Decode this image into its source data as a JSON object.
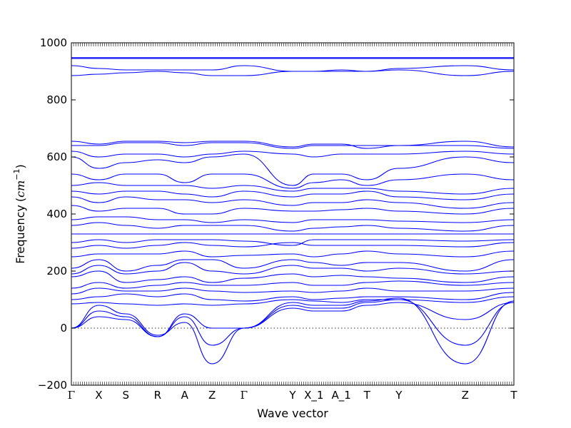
{
  "chart_data": {
    "type": "line",
    "title": "",
    "xlabel": "Wave vector",
    "ylabel": "Frequency",
    "ylabel_unit": "cm",
    "ylabel_unit_exp": "−1",
    "ylim": [
      -200,
      1000
    ],
    "yticks": [
      -200,
      0,
      200,
      400,
      600,
      800,
      1000
    ],
    "ytick_labels": [
      "−200",
      "0",
      "200",
      "400",
      "600",
      "800",
      "1000"
    ],
    "zero_line": true,
    "grid": false,
    "legend": "none",
    "line_color": "#0000ff",
    "x_range": [
      0,
      1
    ],
    "kpoints": [
      {
        "label": "Γ",
        "x": 0.0
      },
      {
        "label": "X",
        "x": 0.062
      },
      {
        "label": "S",
        "x": 0.123
      },
      {
        "label": "R",
        "x": 0.195
      },
      {
        "label": "A",
        "x": 0.256
      },
      {
        "label": "Z",
        "x": 0.318
      },
      {
        "label": "Γ",
        "x": 0.39
      },
      {
        "label": "Y",
        "x": 0.5
      },
      {
        "label": "X_1",
        "x": 0.548
      },
      {
        "label": "A_1",
        "x": 0.61
      },
      {
        "label": "T",
        "x": 0.668
      },
      {
        "label": "Y",
        "x": 0.74
      },
      {
        "label": "Z",
        "x": 0.89
      },
      {
        "label": "T",
        "x": 1.0
      }
    ],
    "bands_at_kpoints": [
      [
        0,
        40,
        30,
        -30,
        50,
        0,
        0,
        70,
        60,
        60,
        80,
        90,
        30,
        90
      ],
      [
        0,
        60,
        40,
        -30,
        40,
        -60,
        0,
        80,
        70,
        70,
        90,
        100,
        -60,
        90
      ],
      [
        0,
        80,
        50,
        -25,
        20,
        -125,
        0,
        90,
        80,
        80,
        95,
        105,
        -125,
        95
      ],
      [
        85,
        90,
        85,
        80,
        85,
        80,
        85,
        100,
        95,
        90,
        100,
        100,
        90,
        110
      ],
      [
        100,
        110,
        120,
        110,
        120,
        100,
        95,
        110,
        100,
        105,
        110,
        110,
        100,
        125
      ],
      [
        120,
        140,
        130,
        130,
        140,
        130,
        125,
        130,
        125,
        130,
        140,
        130,
        130,
        140
      ],
      [
        140,
        160,
        140,
        150,
        160,
        150,
        150,
        160,
        150,
        150,
        160,
        165,
        150,
        160
      ],
      [
        180,
        200,
        160,
        170,
        180,
        160,
        175,
        190,
        180,
        185,
        180,
        175,
        160,
        180
      ],
      [
        190,
        220,
        190,
        200,
        230,
        200,
        190,
        220,
        210,
        210,
        200,
        210,
        190,
        200
      ],
      [
        210,
        240,
        200,
        220,
        240,
        240,
        210,
        240,
        230,
        220,
        230,
        230,
        200,
        240
      ],
      [
        250,
        260,
        260,
        260,
        270,
        250,
        255,
        260,
        250,
        260,
        270,
        260,
        250,
        270
      ],
      [
        280,
        290,
        280,
        290,
        300,
        290,
        285,
        300,
        290,
        290,
        290,
        290,
        285,
        300
      ],
      [
        300,
        310,
        300,
        310,
        310,
        310,
        305,
        290,
        310,
        310,
        310,
        310,
        305,
        310
      ],
      [
        330,
        330,
        330,
        330,
        330,
        330,
        330,
        330,
        330,
        330,
        330,
        330,
        330,
        330
      ],
      [
        360,
        370,
        360,
        350,
        360,
        360,
        360,
        340,
        350,
        355,
        360,
        350,
        340,
        360
      ],
      [
        380,
        390,
        390,
        380,
        380,
        370,
        380,
        370,
        380,
        380,
        380,
        375,
        370,
        380
      ],
      [
        430,
        410,
        420,
        420,
        400,
        400,
        420,
        410,
        410,
        415,
        420,
        410,
        400,
        420
      ],
      [
        460,
        440,
        460,
        450,
        450,
        440,
        450,
        430,
        440,
        440,
        450,
        440,
        420,
        440
      ],
      [
        480,
        470,
        480,
        480,
        470,
        460,
        480,
        460,
        470,
        470,
        480,
        460,
        450,
        470
      ],
      [
        500,
        510,
        500,
        500,
        500,
        490,
        500,
        480,
        490,
        490,
        490,
        480,
        470,
        490
      ],
      [
        540,
        520,
        540,
        540,
        510,
        540,
        540,
        490,
        510,
        520,
        500,
        520,
        540,
        520
      ],
      [
        600,
        560,
        580,
        590,
        580,
        600,
        610,
        500,
        540,
        540,
        520,
        560,
        600,
        580
      ],
      [
        620,
        600,
        610,
        610,
        600,
        610,
        620,
        610,
        600,
        610,
        610,
        610,
        620,
        610
      ],
      [
        640,
        640,
        650,
        650,
        640,
        650,
        650,
        630,
        640,
        640,
        640,
        640,
        640,
        630
      ],
      [
        655,
        645,
        655,
        655,
        650,
        655,
        655,
        635,
        645,
        645,
        630,
        640,
        655,
        635
      ],
      [
        885,
        890,
        895,
        900,
        895,
        885,
        885,
        900,
        900,
        900,
        900,
        905,
        885,
        900
      ],
      [
        920,
        910,
        905,
        905,
        905,
        905,
        920,
        900,
        900,
        905,
        900,
        910,
        920,
        905
      ],
      [
        945,
        945,
        945,
        945,
        945,
        945,
        945,
        945,
        945,
        945,
        945,
        945,
        945,
        945
      ],
      [
        948,
        948,
        948,
        948,
        948,
        948,
        948,
        948,
        948,
        948,
        948,
        948,
        948,
        948
      ]
    ]
  }
}
